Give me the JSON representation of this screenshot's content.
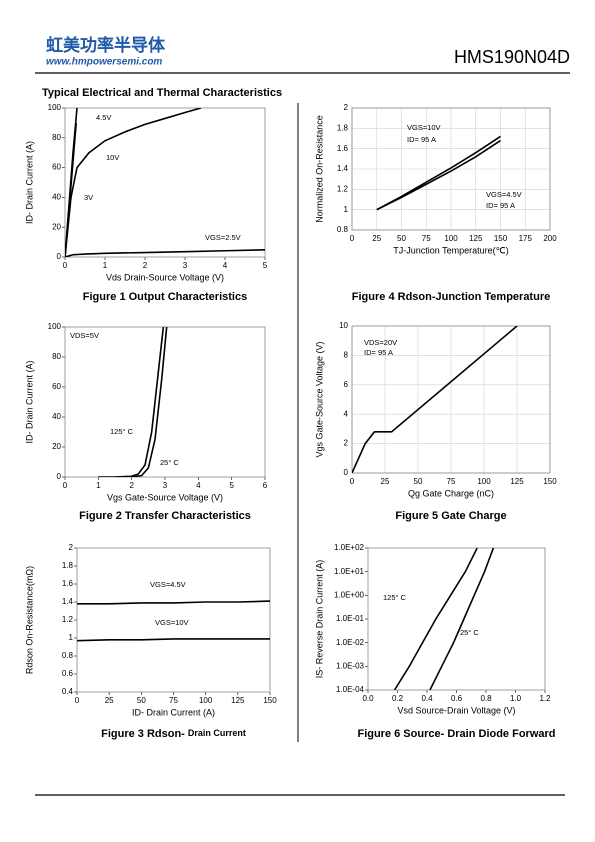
{
  "header": {
    "logo": "虹美功率半导体",
    "website": "www.hmpowersemi.com",
    "part_number": "HMS190N04D",
    "section_title": "Typical Electrical and Thermal Characteristics"
  },
  "chart_data": [
    {
      "type": "line",
      "title": "Figure 1 Output Characteristics",
      "x_label": "Vds Drain-Source Voltage (V)",
      "y_label": "ID- Drain Current (A)",
      "xlim": [
        0,
        5
      ],
      "xticks": [
        0,
        1,
        2,
        3,
        4,
        5
      ],
      "ylim": [
        0,
        100
      ],
      "yticks": [
        0,
        20,
        40,
        60,
        80,
        100
      ],
      "grid": false,
      "color": "#000000",
      "series": [
        {
          "name": "4.5V",
          "x": [
            0,
            0.1,
            0.2,
            0.3
          ],
          "values": [
            0,
            35,
            70,
            100
          ]
        },
        {
          "name": "10V",
          "x": [
            0,
            0.15,
            0.3,
            0.6,
            1,
            1.5,
            2,
            2.5,
            3,
            3.4
          ],
          "values": [
            0,
            40,
            60,
            70,
            78,
            84,
            89,
            93,
            97,
            100
          ]
        },
        {
          "name": "3V",
          "x": [
            0,
            0.1,
            0.2,
            0.28
          ],
          "values": [
            0,
            32,
            64,
            90
          ]
        },
        {
          "name": "VGS=2.5V",
          "x": [
            0,
            0.2,
            0.5,
            1,
            2,
            3,
            4,
            5
          ],
          "values": [
            0,
            1.5,
            2,
            2.5,
            3,
            3.6,
            4.2,
            4.8
          ]
        }
      ]
    },
    {
      "type": "line",
      "title": "Figure 4 Rdson-Junction Temperature",
      "x_label": "TJ-Junction Temperature(℃)",
      "y_label": "Normalized On-Resistance",
      "xlim": [
        0,
        200
      ],
      "xticks": [
        0,
        25,
        50,
        75,
        100,
        125,
        150,
        175,
        200
      ],
      "ylim": [
        0.8,
        2
      ],
      "yticks": [
        0.8,
        1,
        1.2,
        1.4,
        1.6,
        1.8,
        2
      ],
      "grid": true,
      "color": "#000000",
      "series": [
        {
          "name": "VGS=10V",
          "x": [
            25,
            50,
            75,
            100,
            125,
            150
          ],
          "values": [
            1,
            1.13,
            1.27,
            1.41,
            1.56,
            1.72
          ]
        },
        {
          "name": "VGS=4.5V",
          "x": [
            25,
            50,
            75,
            100,
            125,
            150
          ],
          "values": [
            1,
            1.12,
            1.25,
            1.38,
            1.52,
            1.68
          ]
        }
      ],
      "annotations": [
        "ID= 95 A",
        "ID= 95 A"
      ]
    },
    {
      "type": "line",
      "title": "Figure 2 Transfer Characteristics",
      "x_label": "Vgs Gate-Source Voltage (V)",
      "y_label": "ID- Drain Current (A)",
      "xlim": [
        0,
        6
      ],
      "xticks": [
        0,
        1,
        2,
        3,
        4,
        5,
        6
      ],
      "ylim": [
        0,
        100
      ],
      "yticks": [
        0,
        20,
        40,
        60,
        80,
        100
      ],
      "grid": false,
      "color": "#000000",
      "series": [
        {
          "name": "125° C",
          "x": [
            1,
            1.5,
            2,
            2.2,
            2.4,
            2.6,
            2.8,
            2.95
          ],
          "values": [
            0,
            0,
            0.5,
            2,
            8,
            30,
            70,
            100
          ]
        },
        {
          "name": "25° C",
          "x": [
            1.5,
            2,
            2.3,
            2.5,
            2.7,
            2.9,
            3.05
          ],
          "values": [
            0,
            0,
            1,
            6,
            25,
            65,
            100
          ]
        }
      ],
      "annotations": [
        "VDS=5V"
      ]
    },
    {
      "type": "line",
      "title": "Figure 5 Gate Charge",
      "x_label": "Qg Gate Charge (nC)",
      "y_label": "Vgs Gate-Source Voltage (V)",
      "xlim": [
        0,
        150
      ],
      "xticks": [
        0,
        25,
        50,
        75,
        100,
        125,
        150
      ],
      "ylim": [
        0,
        10
      ],
      "yticks": [
        0,
        2,
        4,
        6,
        8,
        10
      ],
      "grid": true,
      "color": "#000000",
      "series": [
        {
          "x": [
            0,
            10,
            17,
            30,
            125
          ],
          "values": [
            0,
            2,
            2.8,
            2.8,
            10
          ]
        }
      ],
      "annotations": [
        "VDS=20V",
        "ID= 95 A"
      ]
    },
    {
      "type": "line",
      "title": "Figure 3 Rdson-",
      "subtitle": "Drain Current",
      "x_label": "ID- Drain Current (A)",
      "y_label": "Rdson On-Resistance(mΩ)",
      "xlim": [
        0,
        150
      ],
      "xticks": [
        0,
        25,
        50,
        75,
        100,
        125,
        150
      ],
      "ylim": [
        0.4,
        2
      ],
      "yticks": [
        0.4,
        0.6,
        0.8,
        1,
        1.2,
        1.4,
        1.6,
        1.8,
        2
      ],
      "grid": false,
      "color": "#000000",
      "series": [
        {
          "name": "VGS=4.5V",
          "x": [
            0,
            25,
            50,
            75,
            100,
            125,
            150
          ],
          "values": [
            1.38,
            1.38,
            1.39,
            1.39,
            1.4,
            1.4,
            1.41
          ]
        },
        {
          "name": "VGS=10V",
          "x": [
            0,
            25,
            50,
            75,
            100,
            125,
            150
          ],
          "values": [
            0.97,
            0.98,
            0.98,
            0.99,
            0.99,
            0.99,
            0.99
          ]
        }
      ]
    },
    {
      "type": "line",
      "title": "Figure 6 Source- Drain Diode Forward",
      "x_label": "Vsd Source-Drain Voltage (V)",
      "y_label": "IS- Reverse Drain Current (A)",
      "log_y": true,
      "xlim": [
        0,
        1.2
      ],
      "xticks": [
        {
          "value": 0,
          "label": "0.0"
        },
        0.2,
        0.4,
        0.6,
        0.8,
        {
          "value": 1,
          "label": "1.0"
        },
        1.2
      ],
      "ylim": [
        0.0001,
        100
      ],
      "yticks": [
        {
          "value": 0.0001,
          "label": "1.0E-04"
        },
        {
          "value": 0.001,
          "label": "1.0E-03"
        },
        {
          "value": 0.01,
          "label": "1.0E-02"
        },
        {
          "value": 0.1,
          "label": "1.0E-01"
        },
        {
          "value": 1,
          "label": "1.0E+00"
        },
        {
          "value": 10,
          "label": "1.0E+01"
        },
        {
          "value": 100,
          "label": "1.0E+02"
        }
      ],
      "grid": false,
      "color": "#000000",
      "series": [
        {
          "name": "125° C",
          "x": [
            0.18,
            0.28,
            0.37,
            0.46,
            0.56,
            0.66,
            0.74
          ],
          "values": [
            0.0001,
            0.001,
            0.01,
            0.1,
            1,
            10,
            100
          ]
        },
        {
          "name": "25° C",
          "x": [
            0.42,
            0.5,
            0.58,
            0.65,
            0.72,
            0.79,
            0.85
          ],
          "values": [
            0.0001,
            0.001,
            0.01,
            0.1,
            1,
            10,
            100
          ]
        }
      ]
    }
  ]
}
